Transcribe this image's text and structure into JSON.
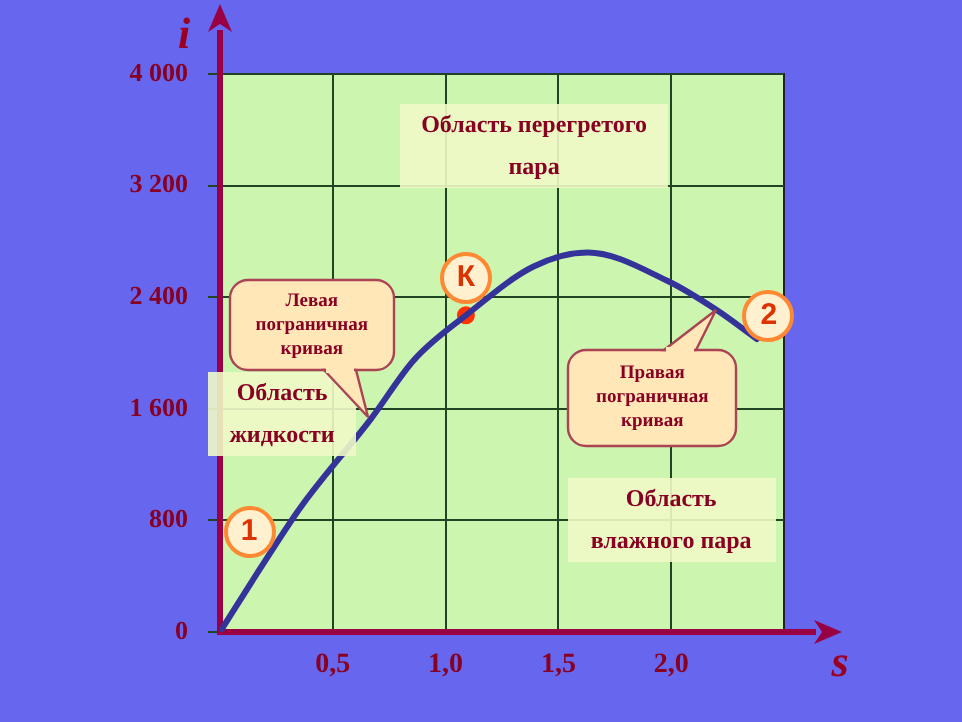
{
  "chart_data": {
    "type": "line",
    "xlabel": "s",
    "ylabel": "i",
    "xlim": [
      0,
      2.5
    ],
    "xticks": [
      {
        "value": 0,
        "label": null
      },
      {
        "value": 0.5,
        "label": "0,5"
      },
      {
        "value": 1,
        "label": "1,0"
      },
      {
        "value": 1.5,
        "label": "1,5"
      },
      {
        "value": 2,
        "label": "2,0"
      }
    ],
    "ylim": [
      0,
      4000
    ],
    "yticks": [
      0,
      800,
      {
        "value": 1600,
        "label": "1 600"
      },
      {
        "value": 2400,
        "label": "2 400"
      },
      {
        "value": 3200,
        "label": "3 200"
      },
      {
        "value": 4000,
        "label": "4 000"
      }
    ],
    "grid": true,
    "legend": false,
    "series": [
      {
        "type": "line",
        "color": "#333399",
        "marker": "none",
        "line_style": "solid",
        "x": [
          0,
          0.2,
          0.36,
          0.67,
          0.86,
          1.09,
          1.39,
          1.63,
          1.98,
          2.2,
          2.38
        ],
        "values": [
          0,
          510,
          900,
          1530,
          1950,
          2270,
          2620,
          2720,
          2520,
          2310,
          2100
        ]
      },
      {
        "type": "scatter",
        "color": "#ff3300",
        "marker": "circle",
        "x": [
          1.09
        ],
        "values": [
          2270
        ]
      }
    ],
    "annotations": [
      "Область  перегретого пара",
      "Левая пограничная кривая",
      "Область жидкости",
      {
        "text": "Правая пограничная кривая",
        "x": 2.2,
        "y": 2310
      },
      "Область влажного пара",
      {
        "text": "1",
        "x": 0.2,
        "y": 510
      },
      {
        "text": "К",
        "x": 1.09,
        "y": 2270
      },
      {
        "text": "2",
        "x": 2.38,
        "y": 2100
      }
    ]
  }
}
